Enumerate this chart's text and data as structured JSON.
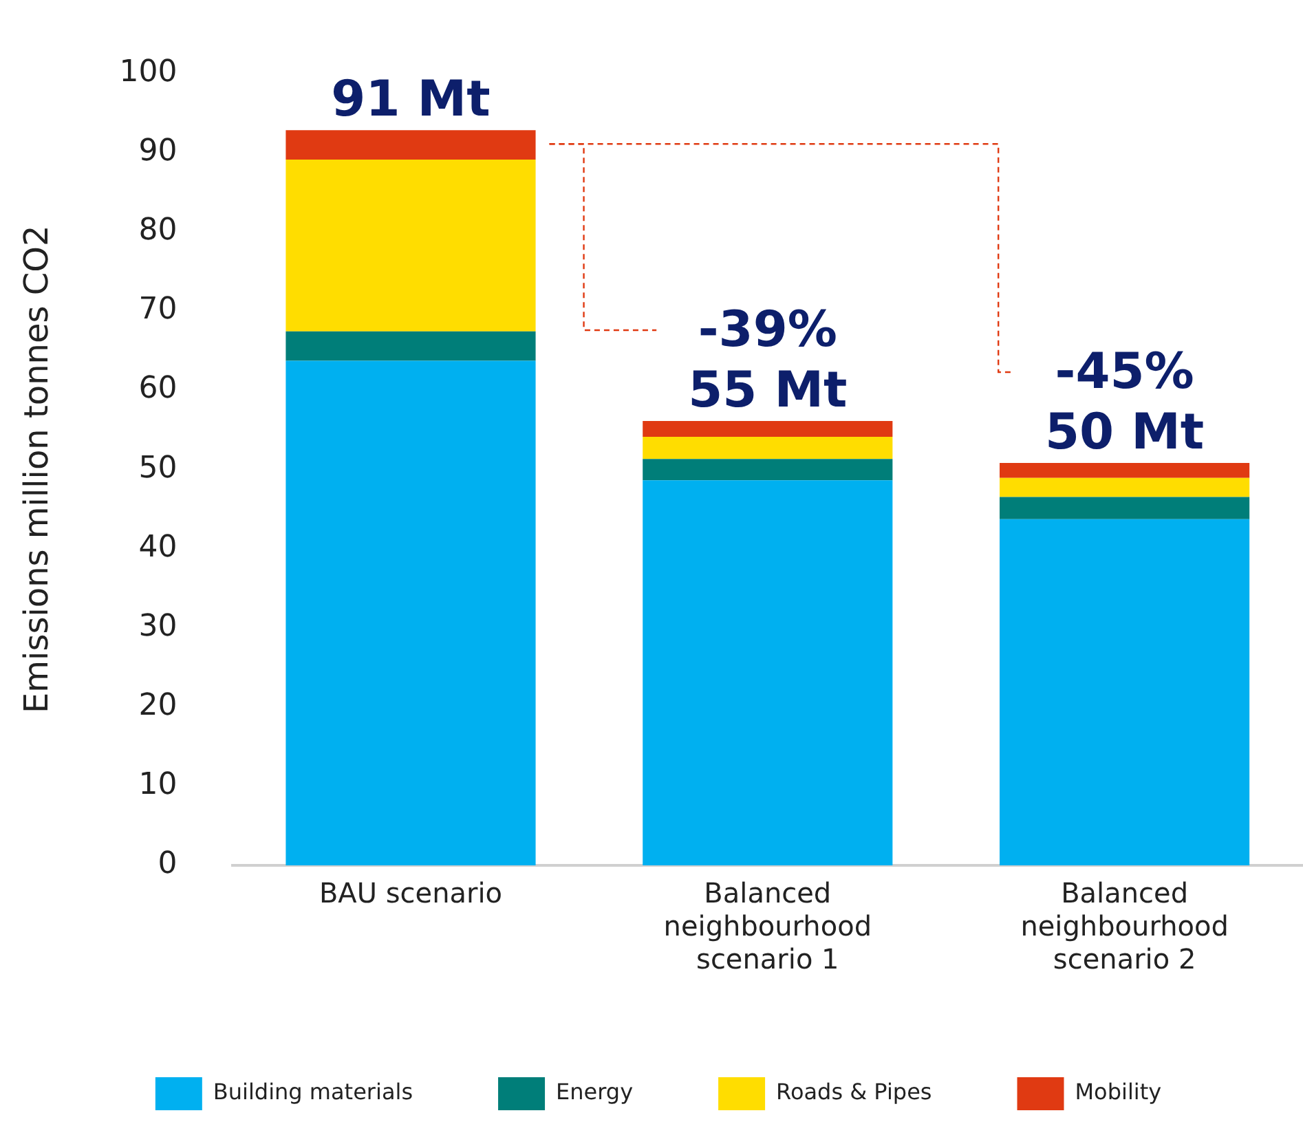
{
  "chart_data": {
    "type": "bar",
    "stacked": true,
    "ylabel": "Emissions million tonnes CO2",
    "categories": [
      "BAU scenario",
      "Balanced neighbourhood scenario 1",
      "Balanced neighbourhood scenario 2"
    ],
    "series": [
      {
        "name": "Building materials",
        "color": "#00b0f0",
        "values": [
          63.7,
          48.6,
          43.7
        ]
      },
      {
        "name": "Energy",
        "color": "#007e79",
        "values": [
          3.7,
          2.7,
          2.8
        ]
      },
      {
        "name": "Roads & Pipes",
        "color": "#ffdd00",
        "values": [
          21.7,
          2.8,
          2.4
        ]
      },
      {
        "name": "Mobility",
        "color": "#e03a12",
        "values": [
          3.7,
          2.0,
          1.9
        ]
      }
    ],
    "ylim": [
      0,
      100
    ],
    "yticks": [
      0,
      10,
      20,
      30,
      40,
      50,
      60,
      70,
      80,
      90,
      100
    ],
    "totals": [
      "91 Mt",
      "55 Mt",
      "50 Mt"
    ],
    "annotations": [
      {
        "text": "-39%",
        "x": "Balanced neighbourhood scenario 1",
        "y": 56.1
      },
      {
        "text": "-45%",
        "x": "Balanced neighbourhood scenario 2",
        "y": 50.8
      }
    ],
    "grid": false,
    "legend": "bottom"
  }
}
